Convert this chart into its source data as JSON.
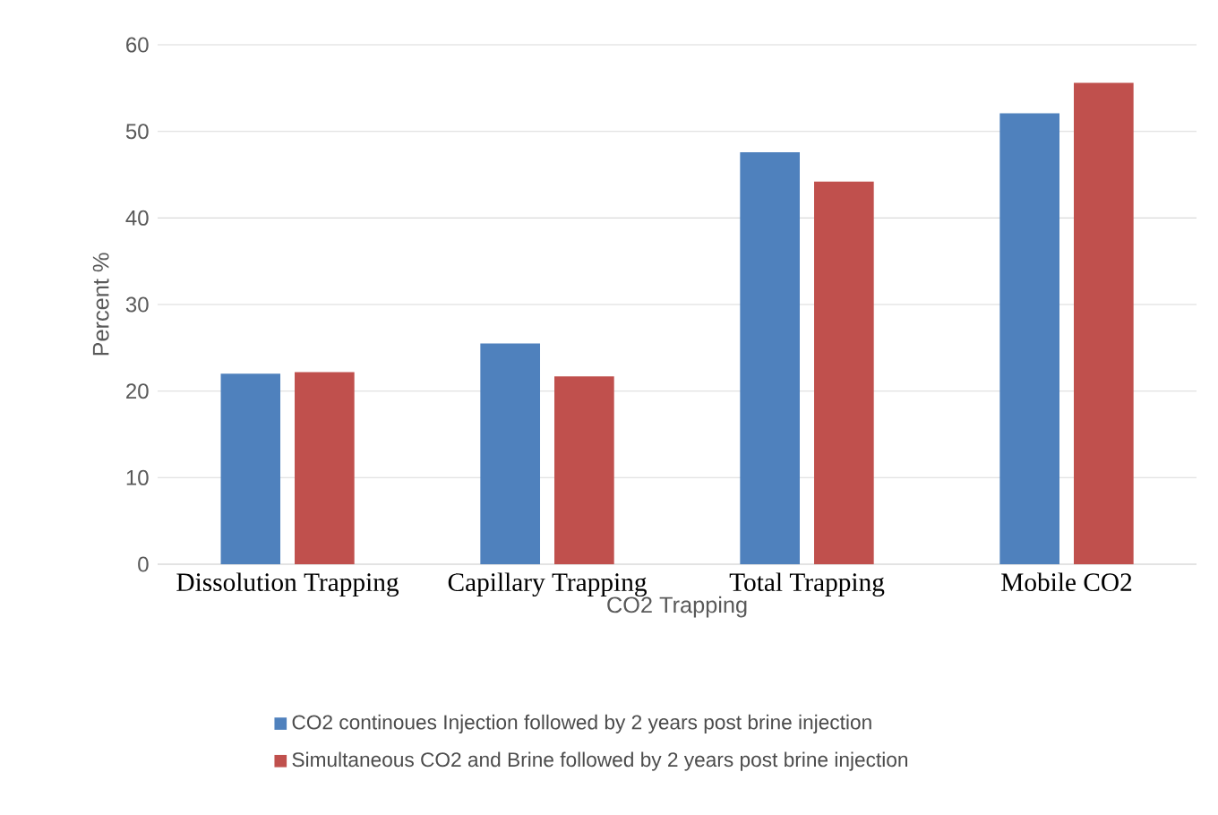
{
  "chart_data": {
    "type": "bar",
    "xlabel": "CO2 Trapping",
    "ylabel": "Percent %",
    "categories": [
      "Dissolution Trapping",
      "Capillary Trapping",
      "Total Trapping",
      "Mobile CO2"
    ],
    "series": [
      {
        "name": "CO2 continoues Injection followed by 2 years post brine injection",
        "color": "#4f81bd",
        "values": [
          22.0,
          25.5,
          47.6,
          52.1
        ]
      },
      {
        "name": "Simultaneous CO2 and Brine followed by 2 years post brine injection",
        "color": "#c0504d",
        "values": [
          22.2,
          21.7,
          44.2,
          55.6
        ]
      }
    ],
    "ylim": [
      0,
      60
    ],
    "yticks": [
      0,
      10,
      20,
      30,
      40,
      50,
      60
    ],
    "grid": "y",
    "legend": "bottom"
  }
}
